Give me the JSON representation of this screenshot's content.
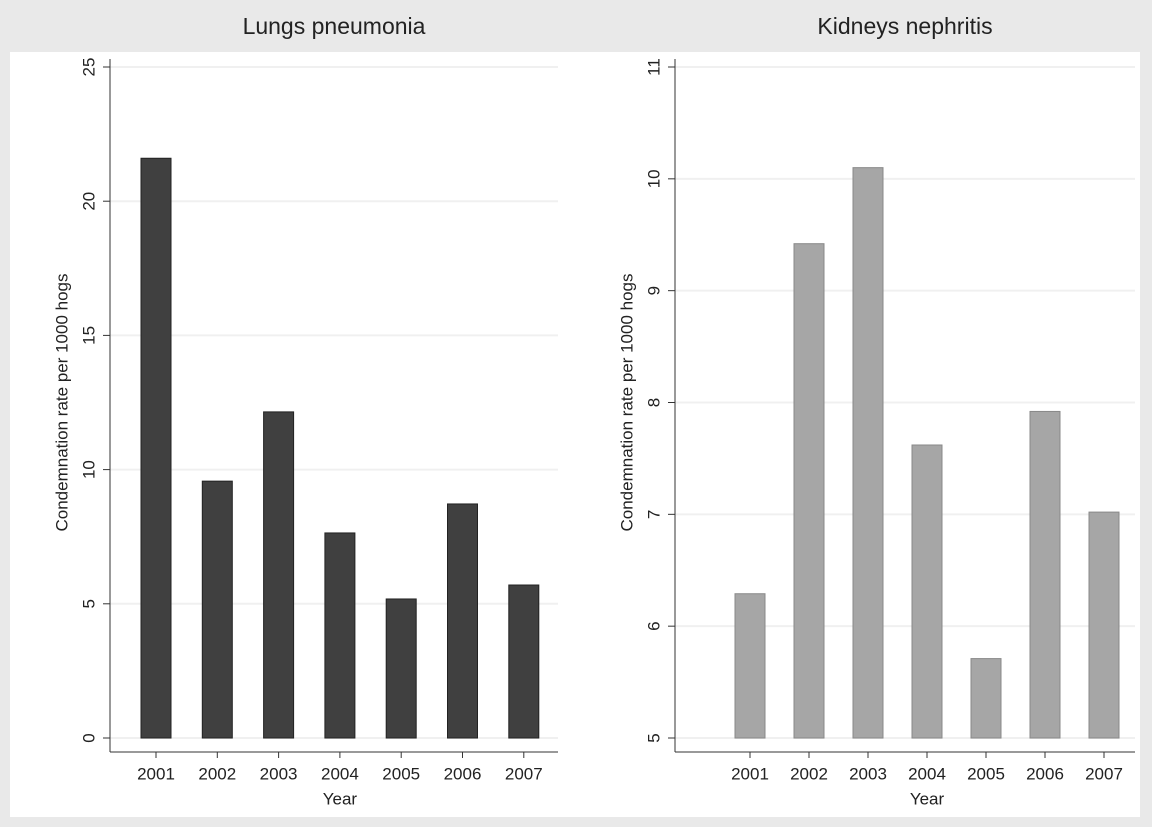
{
  "chart_data": [
    {
      "type": "bar",
      "title": "Lungs pneumonia",
      "x_label": "Year",
      "y_label": "Condemnation rate per 1000 hogs",
      "categories": [
        "2001",
        "2002",
        "2003",
        "2004",
        "2005",
        "2006",
        "2007"
      ],
      "values": [
        21.6,
        9.57,
        12.15,
        7.64,
        5.18,
        8.72,
        5.7
      ],
      "color": "#404040",
      "ylim": [
        0,
        25
      ],
      "yticks": [
        0,
        5,
        10,
        15,
        20,
        25
      ],
      "grid": true
    },
    {
      "type": "bar",
      "title": "Kidneys nephritis",
      "x_label": "Year",
      "y_label": "Condemnation rate per 1000 hogs",
      "categories": [
        "2001",
        "2002",
        "2003",
        "2004",
        "2005",
        "2006",
        "2007"
      ],
      "values": [
        6.29,
        9.42,
        10.1,
        7.62,
        5.71,
        7.92,
        7.02
      ],
      "color": "#a6a6a6",
      "ylim": [
        5,
        11
      ],
      "yticks": [
        5,
        6,
        7,
        8,
        9,
        10,
        11
      ],
      "grid": true
    }
  ]
}
